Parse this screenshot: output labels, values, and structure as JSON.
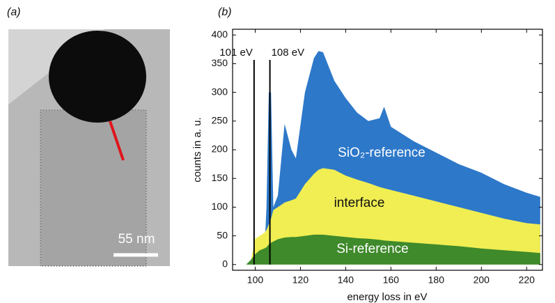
{
  "panel_a": {
    "label": "(a)",
    "scale_bar": "55 nm"
  },
  "chart_data": {
    "type": "area",
    "panel_label": "(b)",
    "x_label": "energy loss in eV",
    "y_label": "counts in a. u.",
    "x": [
      90,
      96,
      98,
      100,
      102,
      104,
      105,
      106,
      107,
      108,
      110,
      113,
      116,
      118,
      122,
      126,
      128,
      130,
      135,
      140,
      145,
      150,
      155,
      157,
      160,
      170,
      180,
      190,
      200,
      210,
      220,
      226
    ],
    "series": [
      {
        "name": "SiO₂-reference",
        "color": "#2d78c9",
        "label_color": "#ffffff",
        "values": [
          0,
          0,
          2,
          5,
          10,
          15,
          100,
          300,
          300,
          100,
          120,
          245,
          200,
          185,
          300,
          360,
          372,
          370,
          320,
          290,
          265,
          250,
          255,
          275,
          240,
          215,
          195,
          175,
          160,
          140,
          125,
          118
        ]
      },
      {
        "name": "interface",
        "color": "#f0ee52",
        "label_color": "#111111",
        "values": [
          0,
          0,
          5,
          45,
          50,
          55,
          60,
          70,
          80,
          95,
          100,
          108,
          112,
          115,
          140,
          158,
          165,
          168,
          165,
          155,
          148,
          142,
          135,
          133,
          130,
          120,
          110,
          100,
          90,
          80,
          72,
          70
        ]
      },
      {
        "name": "Si-reference",
        "color": "#3f8a2b",
        "label_color": "#ffffff",
        "values": [
          0,
          0,
          8,
          18,
          25,
          28,
          30,
          35,
          38,
          40,
          44,
          47,
          48,
          48,
          50,
          52,
          52,
          52,
          50,
          48,
          46,
          45,
          43,
          42,
          41,
          38,
          35,
          32,
          28,
          25,
          22,
          20
        ]
      }
    ],
    "vlines": [
      {
        "x": 99.5,
        "label": "101 eV"
      },
      {
        "x": 106.5,
        "label": "108 eV"
      }
    ],
    "xlim": [
      90,
      227
    ],
    "ylim": [
      -10,
      410
    ],
    "xticks": [
      100,
      120,
      140,
      160,
      180,
      200,
      220
    ],
    "yticks": [
      0,
      50,
      100,
      150,
      200,
      250,
      300,
      350,
      400
    ],
    "grid": false
  }
}
